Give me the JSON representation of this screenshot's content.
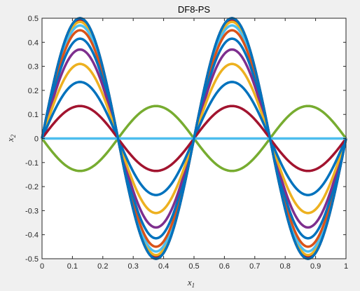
{
  "chart_data": {
    "type": "line",
    "title": "DF8-PS",
    "xlabel": "x",
    "xlabel_sub": "1",
    "ylabel": "x",
    "ylabel_sub": "2",
    "function": "x2 = A * sin(4*pi*x1)",
    "x_samples": 201,
    "xlim": [
      0,
      1
    ],
    "ylim": [
      -0.5,
      0.5
    ],
    "xticks": [
      "0",
      "0.1",
      "0.2",
      "0.3",
      "0.4",
      "0.5",
      "0.6",
      "0.7",
      "0.8",
      "0.9",
      "1"
    ],
    "yticks": [
      "-0.5",
      "-0.4",
      "-0.3",
      "-0.2",
      "-0.1",
      "0",
      "0.1",
      "0.2",
      "0.3",
      "0.4",
      "0.5"
    ],
    "grid": false,
    "legend": "none",
    "series": [
      {
        "amplitude": 0.5,
        "color": "#4dbeee"
      },
      {
        "amplitude": 0.5,
        "color": "#a2142f"
      },
      {
        "amplitude": 0.5,
        "color": "#77ac30"
      },
      {
        "amplitude": 0.5,
        "color": "#7e2f8e"
      },
      {
        "amplitude": 0.5,
        "color": "#808080"
      },
      {
        "amplitude": 0.495,
        "color": "#a2142f"
      },
      {
        "amplitude": 0.485,
        "color": "#edb120"
      },
      {
        "amplitude": 0.47,
        "color": "#4dbeee"
      },
      {
        "amplitude": 0.45,
        "color": "#d95319"
      },
      {
        "amplitude": 0.415,
        "color": "#0072bd"
      },
      {
        "amplitude": 0.37,
        "color": "#7e2f8e"
      },
      {
        "amplitude": 0.31,
        "color": "#edb120"
      },
      {
        "amplitude": 0.235,
        "color": "#0072bd"
      },
      {
        "amplitude": 0.135,
        "color": "#a2142f"
      },
      {
        "amplitude": -0.135,
        "color": "#77ac30"
      },
      {
        "amplitude": 0.0,
        "color": "#4dbeee"
      },
      {
        "amplitude": 0.5,
        "color": "#0072bd"
      }
    ]
  }
}
